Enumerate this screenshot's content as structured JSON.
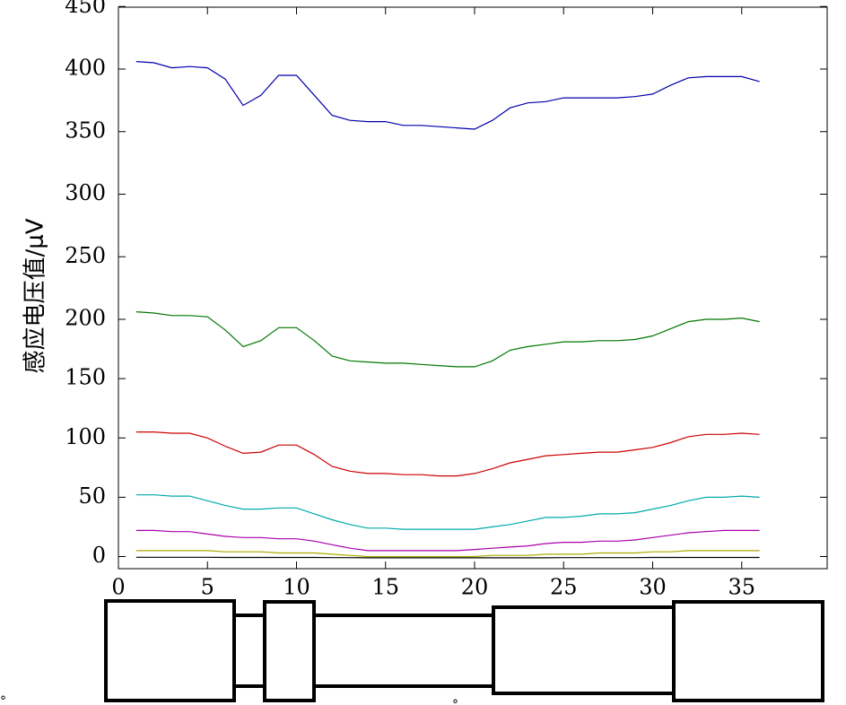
{
  "chart_data": {
    "type": "line",
    "ylabel": "感应电压值/μV",
    "xlabel": "",
    "title": "",
    "xlim": [
      0,
      40
    ],
    "ylim": [
      -10,
      450
    ],
    "x_ticks": [
      0,
      5,
      10,
      15,
      20,
      25,
      30,
      35
    ],
    "y_ticks": [
      0,
      50,
      100,
      150,
      200,
      250,
      300,
      350,
      400,
      450
    ],
    "y_tick_labels": [
      "0",
      "50",
      "100",
      "150",
      "200",
      "250",
      "300",
      "350",
      "400",
      "450"
    ],
    "grid": false,
    "x": [
      1,
      2,
      3,
      4,
      5,
      6,
      7,
      8,
      9,
      10,
      11,
      12,
      13,
      14,
      15,
      16,
      17,
      18,
      19,
      20,
      21,
      22,
      23,
      24,
      25,
      26,
      27,
      28,
      29,
      30,
      31,
      32,
      33,
      34,
      35,
      36
    ],
    "series": [
      {
        "color": "#0000aa",
        "values": [
          406,
          405,
          401,
          402,
          401,
          392,
          371,
          379,
          395,
          395,
          379,
          363,
          359,
          358,
          358,
          355,
          355,
          354,
          353,
          352,
          359,
          369,
          373,
          374,
          377,
          377,
          377,
          377,
          378,
          380,
          387,
          393,
          394,
          394,
          394,
          390
        ]
      },
      {
        "color": "#007700",
        "values": [
          206,
          205,
          203,
          203,
          202,
          191,
          177,
          182,
          193,
          193,
          182,
          169,
          165,
          164,
          163,
          163,
          162,
          161,
          160,
          160,
          165,
          174,
          177,
          179,
          181,
          181,
          182,
          182,
          183,
          186,
          192,
          198,
          200,
          200,
          201,
          198
        ]
      },
      {
        "color": "#cc0000",
        "values": [
          105,
          105,
          104,
          104,
          100,
          93,
          87,
          88,
          94,
          94,
          86,
          76,
          72,
          70,
          70,
          69,
          69,
          68,
          68,
          70,
          74,
          79,
          82,
          85,
          86,
          87,
          88,
          88,
          90,
          92,
          96,
          101,
          103,
          103,
          104,
          103
        ]
      },
      {
        "color": "#00aaaa",
        "values": [
          52,
          52,
          51,
          51,
          47,
          43,
          40,
          40,
          41,
          41,
          36,
          31,
          27,
          24,
          24,
          23,
          23,
          23,
          23,
          23,
          25,
          27,
          30,
          33,
          33,
          34,
          36,
          36,
          37,
          40,
          43,
          47,
          50,
          50,
          51,
          50
        ]
      },
      {
        "color": "#aa00aa",
        "values": [
          22,
          22,
          21,
          21,
          19,
          17,
          16,
          16,
          15,
          15,
          13,
          10,
          7,
          5,
          5,
          5,
          5,
          5,
          5,
          6,
          7,
          8,
          9,
          11,
          12,
          12,
          13,
          13,
          14,
          16,
          18,
          20,
          21,
          22,
          22,
          22
        ]
      },
      {
        "color": "#aaaa00",
        "values": [
          5,
          5,
          5,
          5,
          5,
          4,
          4,
          4,
          3,
          3,
          3,
          2,
          1,
          0,
          0,
          0,
          0,
          0,
          0,
          0,
          1,
          1,
          1,
          2,
          2,
          2,
          3,
          3,
          3,
          4,
          4,
          5,
          5,
          5,
          5,
          5
        ]
      },
      {
        "color": "#000000",
        "values": [
          -4,
          -4,
          -4,
          -4,
          -4,
          -5,
          -5,
          -5,
          -5,
          -5,
          -5,
          -6,
          -6,
          -7,
          -7,
          -7,
          -7,
          -7,
          -7,
          -7,
          -7,
          -7,
          -7,
          -7,
          -6,
          -6,
          -6,
          -6,
          -6,
          -5,
          -5,
          -5,
          -5,
          -5,
          -5,
          -5
        ]
      }
    ]
  },
  "diagram": {
    "markers": [
      "°",
      "°"
    ]
  }
}
